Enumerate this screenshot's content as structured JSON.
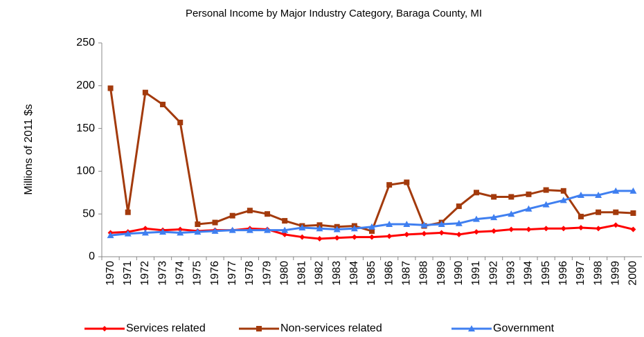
{
  "chart_data": {
    "type": "line",
    "title": "Personal Income by Major Industry Category, Baraga County, MI",
    "y_label": "Millions of 2011 $s",
    "categories": [
      "1970",
      "1971",
      "1972",
      "1973",
      "1974",
      "1975",
      "1976",
      "1977",
      "1978",
      "1979",
      "1980",
      "1981",
      "1982",
      "1983",
      "1984",
      "1985",
      "1986",
      "1987",
      "1988",
      "1989",
      "1990",
      "1991",
      "1992",
      "1993",
      "1994",
      "1995",
      "1996",
      "1997",
      "1998",
      "1999",
      "2000"
    ],
    "series": [
      {
        "name": "Services related",
        "color": "#ff0000",
        "marker": "diamond",
        "values": [
          28,
          29,
          33,
          31,
          32,
          30,
          31,
          31,
          33,
          32,
          26,
          23,
          21,
          22,
          23,
          23,
          24,
          26,
          27,
          28,
          26,
          29,
          30,
          32,
          32,
          33,
          33,
          34,
          33,
          37,
          32
        ]
      },
      {
        "name": "Non-services related",
        "color": "#a33a0c",
        "marker": "square",
        "values": [
          197,
          52,
          192,
          178,
          157,
          38,
          40,
          48,
          54,
          50,
          42,
          36,
          37,
          35,
          36,
          30,
          84,
          87,
          36,
          40,
          59,
          75,
          70,
          70,
          73,
          78,
          77,
          47,
          52,
          52,
          51
        ]
      },
      {
        "name": "Government",
        "color": "#3f7ff0",
        "marker": "triangle",
        "values": [
          25,
          27,
          28,
          29,
          28,
          29,
          30,
          31,
          31,
          31,
          31,
          34,
          33,
          32,
          33,
          35,
          38,
          38,
          37,
          38,
          39,
          44,
          46,
          50,
          56,
          61,
          66,
          72,
          72,
          77,
          77
        ]
      }
    ],
    "ylim": [
      0,
      250
    ],
    "yticks": [
      0,
      50,
      100,
      150,
      200,
      250
    ],
    "legend": "bottom"
  }
}
